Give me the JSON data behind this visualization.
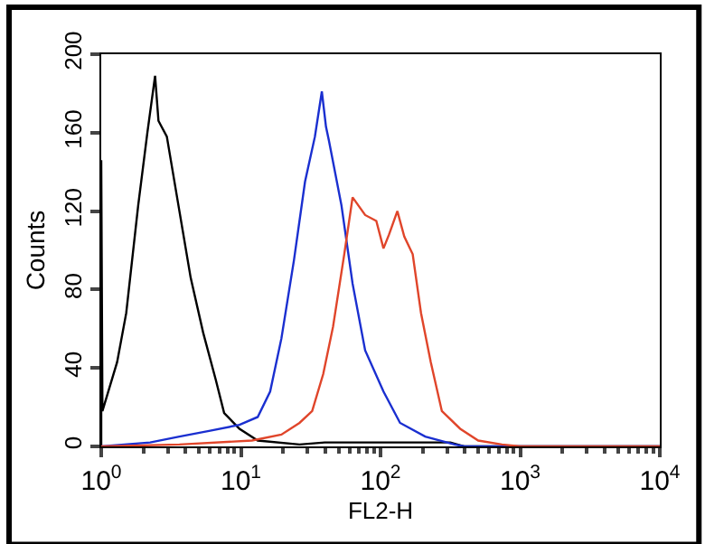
{
  "chart_data": {
    "type": "line",
    "xlabel": "FL2-H",
    "ylabel": "Counts",
    "log": "x",
    "legend": false,
    "marker": "none",
    "line_style": "solid",
    "xlim": [
      1,
      10000
    ],
    "xticks": [
      {
        "value": 1,
        "label": "10$^{0}$"
      },
      {
        "value": 10,
        "label": "10$^{1}$"
      },
      {
        "value": 100,
        "label": "10$^{2}$"
      },
      {
        "value": 1000,
        "label": "10$^{3}$"
      },
      {
        "value": 10000,
        "label": "10$^{4}$"
      }
    ],
    "ylim": [
      0,
      200
    ],
    "yticks": [
      0,
      40,
      80,
      120,
      160,
      200
    ],
    "series": [
      {
        "color": "#000000",
        "x": [
          1,
          1,
          1.02,
          1.3,
          1.51,
          1.84,
          2.14,
          2.43,
          2.57,
          2.95,
          3.63,
          4.37,
          5.37,
          6.61,
          7.59,
          9.77,
          13.2,
          26.3,
          39.8,
          316,
          398,
          10000
        ],
        "values": [
          0,
          146,
          18,
          43,
          68,
          123,
          160,
          189,
          166,
          158,
          120,
          86,
          58,
          34,
          17,
          9,
          3,
          1,
          2,
          2,
          0,
          0
        ]
      },
      {
        "color": "#1a2fd0",
        "x": [
          1,
          2.24,
          3.63,
          6.03,
          9.77,
          13.2,
          16.2,
          19.5,
          24,
          28.8,
          33.9,
          38,
          40.7,
          42.7,
          52.5,
          63.1,
          77.6,
          105,
          138,
          209,
          339,
          398,
          10000
        ],
        "values": [
          0,
          2,
          5,
          8,
          11,
          15,
          28,
          55,
          95,
          135,
          158,
          181,
          163,
          156,
          123,
          83,
          49,
          28,
          12,
          5,
          1,
          0,
          0
        ]
      },
      {
        "color": "#e0452a",
        "x": [
          1,
          3.63,
          12,
          19.5,
          26.3,
          32.4,
          38.9,
          45.7,
          55,
          63.1,
          77.6,
          93.3,
          105,
          115,
          132,
          148,
          170,
          195,
          229,
          275,
          372,
          501,
          741,
          1000,
          10000
        ],
        "values": [
          0,
          1,
          3,
          6,
          12,
          18,
          37,
          61,
          98,
          127,
          118,
          115,
          101,
          108,
          120,
          107,
          98,
          68,
          43,
          18,
          9,
          3,
          1,
          0,
          0
        ]
      }
    ]
  }
}
